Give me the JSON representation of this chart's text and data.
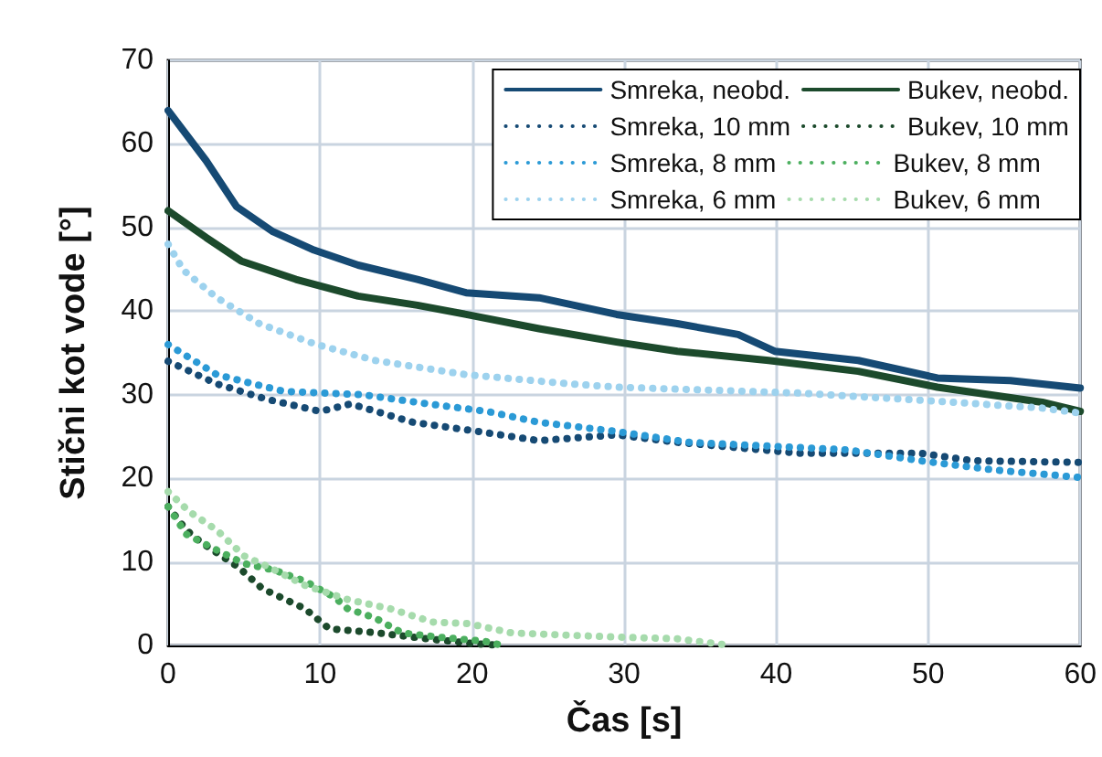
{
  "chart_data": {
    "type": "line",
    "xlabel": "Čas [s]",
    "ylabel": "Stični kot vode [°]",
    "xlim": [
      0,
      60
    ],
    "xticks": [
      0,
      10,
      20,
      30,
      40,
      50,
      60
    ],
    "ylim": [
      0,
      70
    ],
    "yticks": [
      0,
      10,
      20,
      30,
      40,
      50,
      60,
      70
    ],
    "grid": true,
    "legend": "top right",
    "marker": "none",
    "series": [
      {
        "name": "Smreka, neobd.",
        "color": "#164a74",
        "line_style": "solid",
        "x": [
          0,
          2.5,
          4.5,
          6.9,
          9.6,
          12.5,
          16.4,
          19.6,
          24.4,
          29.5,
          33.5,
          37.5,
          39.9,
          45.4,
          50.6,
          55.4,
          60
        ],
        "values": [
          64,
          58,
          52.5,
          49.5,
          47.3,
          45.5,
          43.8,
          42.2,
          41.6,
          39.6,
          38.5,
          37.2,
          35.2,
          34.1,
          32,
          31.7,
          30.8
        ]
      },
      {
        "name": "Bukev, neobd.",
        "color": "#1c4a2c",
        "line_style": "solid",
        "x": [
          0,
          2.5,
          4.8,
          8.4,
          12.5,
          16.4,
          19.6,
          24.4,
          29.5,
          33.5,
          39.5,
          45.4,
          50.6,
          57.5,
          60
        ],
        "values": [
          52,
          48.8,
          46,
          43.8,
          41.8,
          40.7,
          39.6,
          37.9,
          36.3,
          35.2,
          34.1,
          32.8,
          30.9,
          29.1,
          28
        ]
      },
      {
        "name": "Smreka, 10 mm",
        "color": "#164a74",
        "line_style": "dotted",
        "x": [
          0,
          3.2,
          6.4,
          10,
          12,
          16.1,
          20.4,
          24.4,
          29.5,
          33.5,
          41.5,
          49.5,
          52.9,
          60
        ],
        "values": [
          34,
          31.3,
          29.5,
          28,
          28.9,
          26.7,
          25.6,
          24.5,
          25.2,
          24.3,
          23,
          23,
          22.1,
          21.9
        ]
      },
      {
        "name": "Bukev, 10 mm",
        "color": "#1c4a2c",
        "line_style": "dotted",
        "x": [
          0,
          1.2,
          2.2,
          4.6,
          6.2,
          9,
          10.6,
          13.8,
          17,
          20.2,
          22
        ],
        "values": [
          16.6,
          13.8,
          12.3,
          9.4,
          6.8,
          4.4,
          2,
          1.5,
          0.8,
          0.2,
          0
        ]
      },
      {
        "name": "Smreka, 8 mm",
        "color": "#2b9ad6",
        "line_style": "dotted",
        "x": [
          0,
          3.2,
          7.6,
          12.8,
          17.1,
          21,
          24.4,
          29.5,
          34.3,
          44.7,
          49.5,
          54.3,
          60
        ],
        "values": [
          36,
          32.4,
          30.4,
          30,
          28.9,
          28,
          26.7,
          25.6,
          24.3,
          23.4,
          22.1,
          21,
          20.1
        ]
      },
      {
        "name": "Bukev, 8 mm",
        "color": "#4caf5f",
        "line_style": "dotted",
        "x": [
          0,
          1.2,
          3,
          5,
          7,
          9,
          11,
          11.8,
          13.6,
          15.4,
          17.8,
          20.8,
          22
        ],
        "values": [
          16.6,
          13.3,
          11.6,
          9.8,
          9,
          7.7,
          5.7,
          4.4,
          3.3,
          1.5,
          1,
          0.5,
          0
        ]
      },
      {
        "name": "Smreka, 6 mm",
        "color": "#9dd2ee",
        "line_style": "dotted",
        "x": [
          0,
          1,
          3.2,
          6,
          9.6,
          13.6,
          19.6,
          26.4,
          29.5,
          41.5,
          51.6,
          57.5,
          60
        ],
        "values": [
          48,
          44.9,
          41.6,
          38.5,
          36.1,
          34.1,
          32.4,
          31.3,
          30.9,
          30.2,
          29.1,
          28.4,
          27.8
        ]
      },
      {
        "name": "Bukev, 6 mm",
        "color": "#a6dbac",
        "line_style": "dotted",
        "x": [
          0,
          1.4,
          3.2,
          5,
          6.6,
          9,
          11.8,
          14.6,
          17.4,
          19.8,
          22.6,
          29.5,
          33.5,
          37
        ],
        "values": [
          18.4,
          16,
          13.8,
          10.7,
          9.4,
          7.2,
          5.5,
          4.4,
          2.8,
          2.6,
          1.5,
          1,
          0.8,
          0
        ]
      }
    ]
  }
}
